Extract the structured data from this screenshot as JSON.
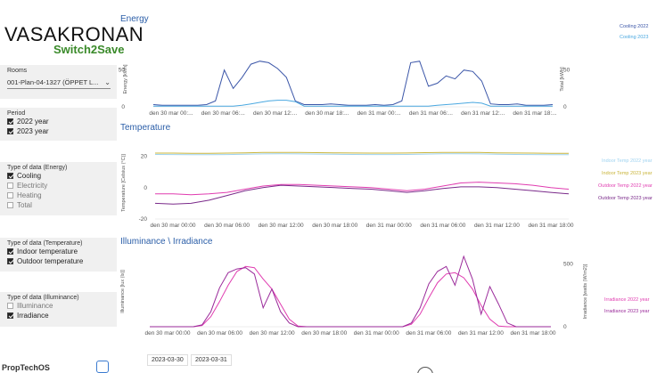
{
  "brand": {
    "title": "VASAKRONAN",
    "subtitle": "Switch2Save"
  },
  "sidebar": {
    "rooms": {
      "label": "Rooms",
      "value": "001-Plan-04-1327 (ÖPPET L..."
    },
    "period": {
      "label": "Period",
      "options": [
        {
          "label": "2022 year",
          "checked": true
        },
        {
          "label": "2023 year",
          "checked": true
        }
      ]
    },
    "energy_type": {
      "label": "Type of data (Energy)",
      "options": [
        {
          "label": "Cooling",
          "checked": true
        },
        {
          "label": "Electricity",
          "checked": false
        },
        {
          "label": "Heating",
          "checked": false
        },
        {
          "label": "Total",
          "checked": false
        }
      ]
    },
    "temperature_type": {
      "label": "Type of data (Temperature)",
      "options": [
        {
          "label": "Indoor temperature",
          "checked": true
        },
        {
          "label": "Outdoor temperature",
          "checked": true
        }
      ]
    },
    "illuminance_type": {
      "label": "Type of data (Illuminance)",
      "options": [
        {
          "label": "Illuminance",
          "checked": false
        },
        {
          "label": "Irradiance",
          "checked": true
        }
      ]
    }
  },
  "dates": [
    "2023-03-30",
    "2023-03-31"
  ],
  "footer": {
    "logo": "PropTechOS"
  },
  "chart_data": [
    {
      "type": "line",
      "title": "Energy",
      "ylabel": "Energy [kWh]",
      "y2label": "Total [kWh]",
      "yticks": [
        "50",
        "0"
      ],
      "y2ticks": [
        "50",
        "0"
      ],
      "ylim": [
        0,
        75
      ],
      "x_tick_labels": [
        "den 30 mar 00:...",
        "den 30 mar 06:...",
        "den 30 mar 12:...",
        "den 30 mar 18:...",
        "den 31 mar 00:...",
        "den 31 mar 06:...",
        "den 31 mar 12:...",
        "den 31 mar 18:..."
      ],
      "series": [
        {
          "name": "Cooling 2022",
          "color": "#3b56a8",
          "values": [
            3,
            2,
            2,
            2,
            2,
            2,
            3,
            8,
            50,
            25,
            40,
            58,
            62,
            60,
            52,
            40,
            8,
            3,
            3,
            3,
            4,
            3,
            2,
            2,
            2,
            3,
            2,
            3,
            8,
            60,
            62,
            28,
            32,
            42,
            38,
            50,
            48,
            35,
            4,
            3,
            3,
            4,
            2,
            2,
            2,
            3
          ]
        },
        {
          "name": "Cooling 2023",
          "color": "#4aa8e0",
          "values": [
            1,
            1,
            1,
            1,
            1,
            1,
            1,
            1,
            1,
            1,
            2,
            4,
            6,
            8,
            9,
            9,
            7,
            1,
            1,
            1,
            1,
            1,
            1,
            1,
            1,
            1,
            1,
            1,
            1,
            1,
            1,
            1,
            2,
            3,
            4,
            5,
            6,
            5,
            1,
            1,
            1,
            1,
            1,
            1,
            1,
            1
          ]
        }
      ]
    },
    {
      "type": "line",
      "title": "Temperature",
      "ylabel": "Temperature [Celsius (°C)]",
      "yticks": [
        "20",
        "0",
        "-20"
      ],
      "ylim": [
        -20,
        26
      ],
      "x_tick_labels": [
        "den 30 mar 00:00",
        "den 30 mar 06:00",
        "den 30 mar 12:00",
        "den 30 mar 18:00",
        "den 31 mar 00:00",
        "den 31 mar 06:00",
        "den 31 mar 12:00",
        "den 31 mar 18:00"
      ],
      "series": [
        {
          "name": "Indoor Temp 2022 year",
          "color": "#9fd3f0",
          "values": [
            21.2,
            21.1,
            21.0,
            21.0,
            21.1,
            21.3,
            21.5,
            21.6,
            21.5,
            21.4,
            21.3,
            21.2,
            21.1,
            21.1,
            21.2,
            21.4,
            21.6,
            21.6,
            21.5,
            21.3,
            21.2,
            21.1,
            21.0,
            21.0
          ]
        },
        {
          "name": "Indoor Temp 2023 year",
          "color": "#c9b43a",
          "values": [
            22.0,
            22.0,
            21.9,
            21.9,
            22.0,
            22.2,
            22.4,
            22.5,
            22.4,
            22.3,
            22.2,
            22.1,
            22.0,
            22.0,
            22.1,
            22.3,
            22.5,
            22.5,
            22.4,
            22.2,
            22.1,
            22.0,
            21.9,
            21.9
          ]
        },
        {
          "name": "Outdoor Temp 2022 year",
          "color": "#e03cb0",
          "values": [
            -4,
            -4,
            -4.5,
            -4,
            -3,
            -1,
            1,
            2,
            2,
            1.5,
            1,
            0.5,
            0,
            -1,
            -2,
            -1,
            1,
            3,
            3.5,
            3,
            2.5,
            1.5,
            0,
            -1
          ]
        },
        {
          "name": "Outdoor Temp 2023 year",
          "color": "#7a2a8a",
          "values": [
            -10,
            -10.5,
            -10,
            -8,
            -5,
            -2,
            0,
            1.5,
            1,
            0.5,
            0,
            -0.5,
            -1,
            -2,
            -3,
            -2,
            -0.5,
            0.5,
            0.5,
            0,
            -1,
            -2,
            -3,
            -4
          ]
        }
      ]
    },
    {
      "type": "line",
      "title": "Illuminance \\ Irradiance",
      "ylabel": "Illuminance [lux (lx)]",
      "y2label": "Irradiance [watts (W/m2)]",
      "y2ticks": [
        "500",
        "0"
      ],
      "ylim": [
        0,
        560
      ],
      "x_tick_labels": [
        "den 30 mar 00:00",
        "den 30 mar 06:00",
        "den 30 mar 12:00",
        "den 30 mar 18:00",
        "den 31 mar 00:00",
        "den 31 mar 06:00",
        "den 31 mar 12:00",
        "den 31 mar 18:00"
      ],
      "series": [
        {
          "name": "Irradiance 2022 year",
          "color": "#e03cb0",
          "values": [
            0,
            0,
            0,
            0,
            0,
            0,
            10,
            80,
            200,
            330,
            440,
            480,
            470,
            380,
            300,
            180,
            60,
            5,
            0,
            0,
            0,
            0,
            0,
            0,
            0,
            0,
            0,
            0,
            0,
            0,
            20,
            100,
            230,
            350,
            420,
            430,
            390,
            300,
            170,
            60,
            5,
            0,
            0,
            0,
            0,
            0,
            0
          ]
        },
        {
          "name": "Irradiance 2023 year",
          "color": "#9a2a9a",
          "values": [
            0,
            0,
            0,
            0,
            0,
            0,
            15,
            120,
            310,
            430,
            460,
            470,
            420,
            150,
            300,
            120,
            30,
            0,
            0,
            0,
            0,
            0,
            0,
            0,
            0,
            0,
            0,
            0,
            0,
            0,
            30,
            150,
            340,
            440,
            480,
            330,
            560,
            380,
            100,
            320,
            180,
            30,
            0,
            0,
            0,
            0,
            0
          ]
        }
      ]
    }
  ]
}
